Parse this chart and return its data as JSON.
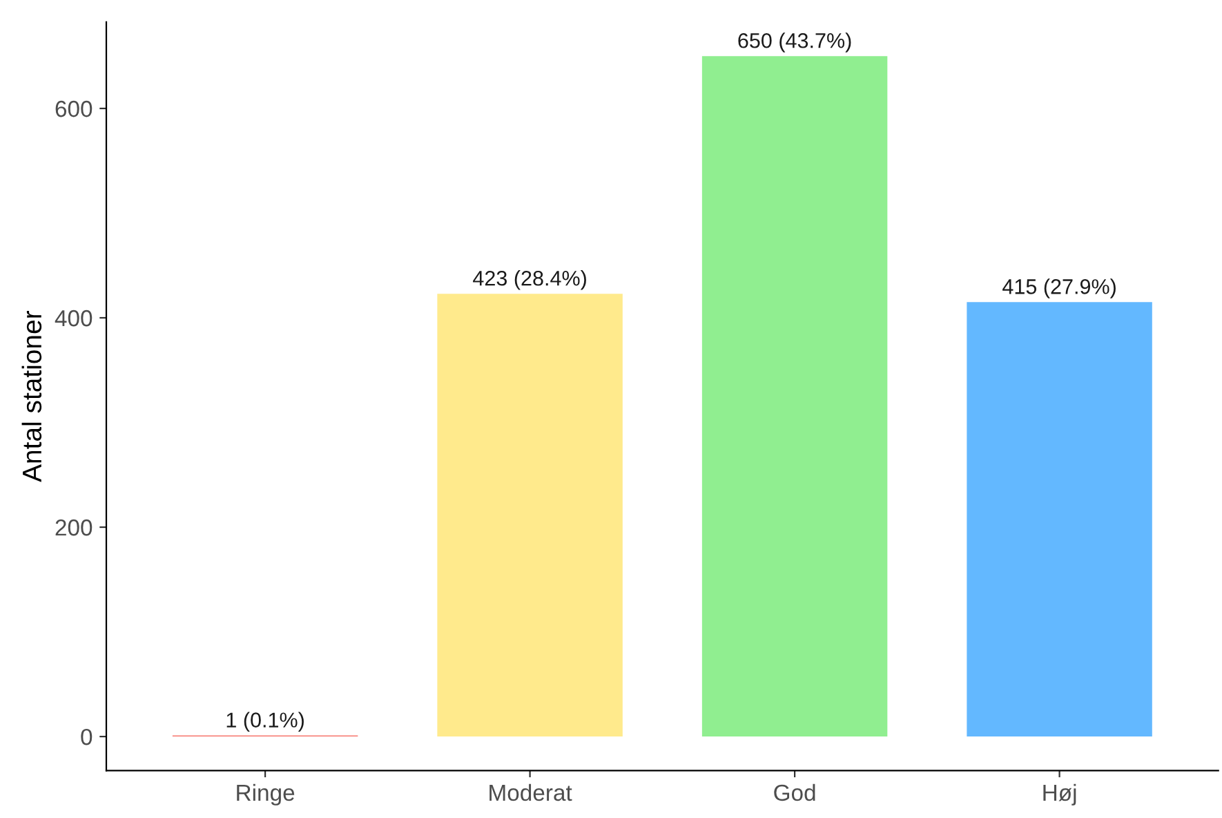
{
  "chart_data": {
    "type": "bar",
    "ylabel": "Antal stationer",
    "categories": [
      "Ringe",
      "Moderat",
      "God",
      "Høj"
    ],
    "values": [
      1,
      423,
      650,
      415
    ],
    "colors": [
      "#f8766d",
      "#ffea8c",
      "#90ee90",
      "#63b8ff"
    ],
    "value_labels": [
      "1 (0.1%)",
      "423 (28.4%)",
      "650 (43.7%)",
      "415 (27.9%)"
    ],
    "ylim": [
      -32.5,
      682.5
    ],
    "yticks": [
      0,
      200,
      400,
      600
    ],
    "grid": false,
    "legend": false
  }
}
